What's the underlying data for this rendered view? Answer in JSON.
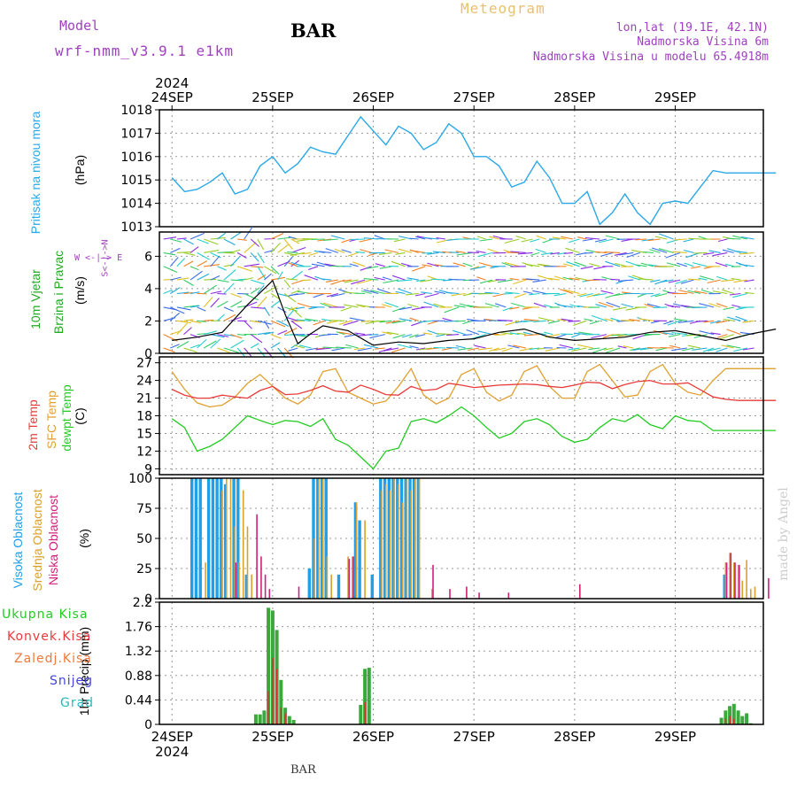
{
  "header": {
    "model_label": "Model",
    "model_name": "wrf-nmm_v3.9.1  e1km",
    "station": "BAR",
    "product": "Meteogram",
    "lonlat": "lon,lat (19.1E, 42.1N)",
    "elev": "Nadmorska Visina 6m",
    "model_elev": "Nadmorska Visina u modelu 65.4918m"
  },
  "footer": {
    "station": "BAR",
    "watermark": "made by Angel"
  },
  "colors": {
    "pressure": "#2aa8e8",
    "t2m": "#e83a3a",
    "sfc": "#e0a030",
    "dewpt": "#22cc22",
    "cloud_high": "#1f9fe8",
    "cloud_mid": "#d9a030",
    "cloud_low": "#d0207a",
    "precip_total": "#3aa83a",
    "precip_conv": "#e03030",
    "wind_speed": "#000000"
  },
  "time_axis": {
    "year": "2024",
    "ticks": [
      "24SEP",
      "25SEP",
      "26SEP",
      "27SEP",
      "28SEP",
      "29SEP"
    ]
  },
  "panels": {
    "pressure": {
      "label": "Pritisak na nivou mora",
      "unit": "(hPa)"
    },
    "wind": {
      "label1": "10m Vjetar",
      "label2": "Brzina i Pravac",
      "unit": "(m/s)",
      "compass": "W <-|-> E",
      "compass2": "S<-|->N"
    },
    "temp": {
      "label_t2m": "2m Temp",
      "label_sfc": "SFC Temp",
      "label_dew": "dewpt Temp",
      "unit": "(C)"
    },
    "cloud": {
      "label_high": "Visoka Oblacnost",
      "label_mid": "Srednja Oblacnost",
      "label_low": "Niska Oblacnost",
      "unit": "(%)"
    },
    "precip": {
      "unit": "1hr Precip (mm)"
    }
  },
  "legend": [
    "Ukupna Kisa",
    "Konvek.Kisa",
    "Zaledj.Kisa",
    "Snijeg",
    "Grad"
  ],
  "chart_data": [
    {
      "type": "line",
      "title": "",
      "ylabel": "Pritisak na nivou mora (hPa)",
      "ylim": [
        1013,
        1018
      ],
      "yticks": [
        "1013",
        "1014",
        "1015",
        "1016",
        "1017",
        "1018"
      ],
      "x_hours": [
        0,
        3,
        6,
        9,
        12,
        15,
        18,
        21,
        24,
        27,
        30,
        33,
        36,
        39,
        42,
        45,
        48,
        51,
        54,
        57,
        60,
        63,
        66,
        69,
        72,
        75,
        78,
        81,
        84,
        87,
        90,
        93,
        96,
        99,
        102,
        105,
        108,
        111,
        114,
        117,
        120,
        123,
        126,
        129,
        132,
        135,
        138,
        141,
        144
      ],
      "series": [
        {
          "values": [
            1015.1,
            1014.5,
            1014.6,
            1014.9,
            1015.3,
            1014.4,
            1014.6,
            1015.6,
            1016.0,
            1015.3,
            1015.7,
            1016.4,
            1016.2,
            1016.1,
            1016.9,
            1017.7,
            1017.1,
            1016.5,
            1017.3,
            1017.0,
            1016.3,
            1016.6,
            1017.4,
            1017.0,
            1016.0,
            1016.0,
            1015.6,
            1014.7,
            1014.9,
            1015.8,
            1015.1,
            1014.0,
            1014.0,
            1014.5,
            1013.1,
            1013.6,
            1014.4,
            1013.6,
            1013.1,
            1014.0,
            1014.1,
            1014.0,
            1014.7,
            1015.4,
            1015.3,
            1015.3,
            1015.3,
            1015.3,
            1015.3
          ]
        }
      ]
    },
    {
      "type": "line",
      "title": "",
      "ylabel": "10m Vjetar Brzina i Pravac (m/s)",
      "ylim": [
        0,
        7.5
      ],
      "yticks": [
        "0",
        "2",
        "4",
        "6"
      ],
      "x_hours": [
        0,
        6,
        12,
        18,
        24,
        27,
        30,
        33,
        36,
        42,
        48,
        54,
        60,
        66,
        72,
        78,
        84,
        90,
        96,
        102,
        108,
        114,
        120,
        126,
        132,
        138,
        144
      ],
      "series": [
        {
          "values": [
            0.8,
            1.0,
            1.3,
            3.0,
            4.5,
            2.4,
            0.6,
            1.2,
            1.7,
            1.4,
            0.5,
            0.7,
            0.6,
            0.8,
            0.9,
            1.3,
            1.5,
            1.0,
            0.8,
            0.9,
            1.0,
            1.3,
            1.4,
            1.1,
            0.8,
            1.2,
            1.5
          ]
        }
      ]
    },
    {
      "type": "line",
      "title": "",
      "ylabel": "2m Temp / SFC Temp / dewpt Temp (C)",
      "ylim": [
        8,
        28
      ],
      "yticks": [
        "9",
        "12",
        "15",
        "18",
        "21",
        "24",
        "27"
      ],
      "x_hours": [
        0,
        3,
        6,
        9,
        12,
        15,
        18,
        21,
        24,
        27,
        30,
        33,
        36,
        39,
        42,
        45,
        48,
        51,
        54,
        57,
        60,
        63,
        66,
        69,
        72,
        75,
        78,
        81,
        84,
        87,
        90,
        93,
        96,
        99,
        102,
        105,
        108,
        111,
        114,
        117,
        120,
        123,
        126,
        129,
        132,
        135,
        138,
        141,
        144
      ],
      "series": [
        {
          "name": "2m Temp",
          "values": [
            22.5,
            21.5,
            21.0,
            21.0,
            21.5,
            21.2,
            21.0,
            22.3,
            23.0,
            21.6,
            21.7,
            22.3,
            23.1,
            22.2,
            22.0,
            23.2,
            22.5,
            21.6,
            21.5,
            23.0,
            22.3,
            22.5,
            23.5,
            23.2,
            22.8,
            23.0,
            23.2,
            23.3,
            23.4,
            23.3,
            23.0,
            22.8,
            23.2,
            23.7,
            23.6,
            22.6,
            23.3,
            23.8,
            24.0,
            23.4,
            23.4,
            23.6,
            22.4,
            21.2,
            20.8,
            20.6,
            20.6,
            20.6,
            20.6
          ]
        },
        {
          "name": "SFC Temp",
          "values": [
            25.5,
            22.5,
            20.2,
            19.5,
            19.8,
            21.2,
            23.5,
            25.0,
            23.0,
            21.0,
            20.0,
            21.5,
            25.5,
            26.0,
            22.0,
            21.0,
            20.0,
            20.5,
            23.0,
            26.0,
            21.5,
            20.0,
            21.0,
            25.0,
            26.0,
            22.0,
            20.5,
            21.5,
            25.5,
            26.5,
            23.0,
            21.0,
            21.0,
            25.5,
            26.7,
            24.0,
            21.2,
            21.5,
            25.5,
            26.7,
            23.5,
            22.0,
            21.5,
            24.0,
            26.0,
            26.0,
            26.0,
            26.0,
            26.0
          ]
        },
        {
          "name": "dewpt Temp",
          "values": [
            17.5,
            16.0,
            12.0,
            12.8,
            14.0,
            16.0,
            18.0,
            17.2,
            16.5,
            17.2,
            17.0,
            16.2,
            17.5,
            14.0,
            13.0,
            11.0,
            9.0,
            12.0,
            12.5,
            17.0,
            17.5,
            16.8,
            18.0,
            19.5,
            18.0,
            16.0,
            14.2,
            15.0,
            17.0,
            17.5,
            16.5,
            14.5,
            13.5,
            14.0,
            16.0,
            17.5,
            17.0,
            18.2,
            16.5,
            15.8,
            18.0,
            17.2,
            17.0,
            15.5,
            15.5,
            15.5,
            15.5,
            15.5,
            15.5
          ]
        }
      ]
    },
    {
      "type": "bar",
      "title": "",
      "ylabel": "Oblacnost (%)",
      "ylim": [
        0,
        100
      ],
      "yticks": [
        "0",
        "25",
        "50",
        "75",
        "100"
      ],
      "x_hours": [
        5,
        6,
        7,
        8,
        9,
        10,
        11,
        12,
        13,
        14,
        15,
        16,
        17,
        18,
        19,
        20,
        21,
        22,
        23,
        24,
        25,
        30,
        33,
        34,
        35,
        36,
        37,
        38,
        40,
        42,
        43,
        44,
        45,
        46,
        48,
        50,
        51,
        52,
        53,
        54,
        55,
        56,
        57,
        58,
        59,
        62,
        66,
        70,
        73,
        80,
        97,
        132,
        133,
        134,
        135,
        136,
        137,
        138,
        139,
        142
      ],
      "series": [
        {
          "name": "Visoka Oblacnost",
          "values": [
            100,
            100,
            100,
            0,
            100,
            100,
            100,
            100,
            95,
            0,
            100,
            100,
            0,
            20,
            0,
            0,
            0,
            0,
            0,
            0,
            0,
            0,
            25,
            100,
            100,
            100,
            100,
            0,
            20,
            0,
            0,
            80,
            65,
            0,
            20,
            100,
            100,
            100,
            100,
            100,
            100,
            100,
            100,
            100,
            100,
            0,
            0,
            0,
            0,
            0,
            0,
            20,
            0,
            0,
            0,
            0,
            0,
            0,
            0,
            0
          ]
        },
        {
          "name": "Srednja Oblacnost",
          "values": [
            0,
            0,
            0,
            30,
            0,
            0,
            0,
            90,
            100,
            100,
            60,
            30,
            90,
            60,
            20,
            0,
            0,
            0,
            0,
            0,
            0,
            0,
            0,
            50,
            100,
            100,
            35,
            20,
            0,
            35,
            35,
            80,
            0,
            65,
            0,
            90,
            95,
            90,
            100,
            95,
            80,
            100,
            90,
            100,
            100,
            8,
            0,
            0,
            0,
            0,
            0,
            30,
            38,
            30,
            28,
            15,
            32,
            8,
            10,
            0
          ]
        },
        {
          "name": "Niska Oblacnost",
          "values": [
            0,
            0,
            0,
            0,
            0,
            0,
            0,
            0,
            0,
            0,
            30,
            0,
            0,
            0,
            0,
            70,
            35,
            20,
            8,
            0,
            0,
            10,
            0,
            0,
            0,
            0,
            0,
            0,
            0,
            33,
            35,
            0,
            0,
            0,
            0,
            0,
            0,
            0,
            0,
            0,
            0,
            0,
            0,
            0,
            0,
            28,
            8,
            10,
            5,
            5,
            12,
            30,
            38,
            30,
            28,
            0,
            0,
            0,
            0,
            17
          ]
        }
      ]
    },
    {
      "type": "bar",
      "title": "",
      "ylabel": "1hr Precip (mm)",
      "ylim": [
        0,
        2.2
      ],
      "yticks": [
        "0",
        "0.44",
        "0.88",
        "1.32",
        "1.76",
        "2.2"
      ],
      "x_hours": [
        20,
        21,
        22,
        23,
        24,
        25,
        26,
        27,
        28,
        29,
        30,
        31,
        45,
        46,
        47,
        131,
        132,
        133,
        134,
        135,
        136,
        137,
        138
      ],
      "series": [
        {
          "name": "Ukupna Kisa",
          "values": [
            0.18,
            0.18,
            0.25,
            2.1,
            2.05,
            1.7,
            0.8,
            0.3,
            0.15,
            0.08,
            0.0,
            0.0,
            0.35,
            1.0,
            1.02,
            0.12,
            0.25,
            0.33,
            0.37,
            0.25,
            0.15,
            0.2,
            0.02
          ]
        },
        {
          "name": "Konvek.Kisa",
          "values": [
            0.0,
            0.0,
            0.0,
            0.6,
            1.2,
            1.0,
            0.3,
            0.2,
            0.0,
            0.0,
            0.0,
            0.0,
            0.0,
            0.4,
            0.0,
            0.0,
            0.1,
            0.15,
            0.1,
            0.0,
            0.0,
            0.0,
            0.0
          ]
        }
      ]
    }
  ]
}
